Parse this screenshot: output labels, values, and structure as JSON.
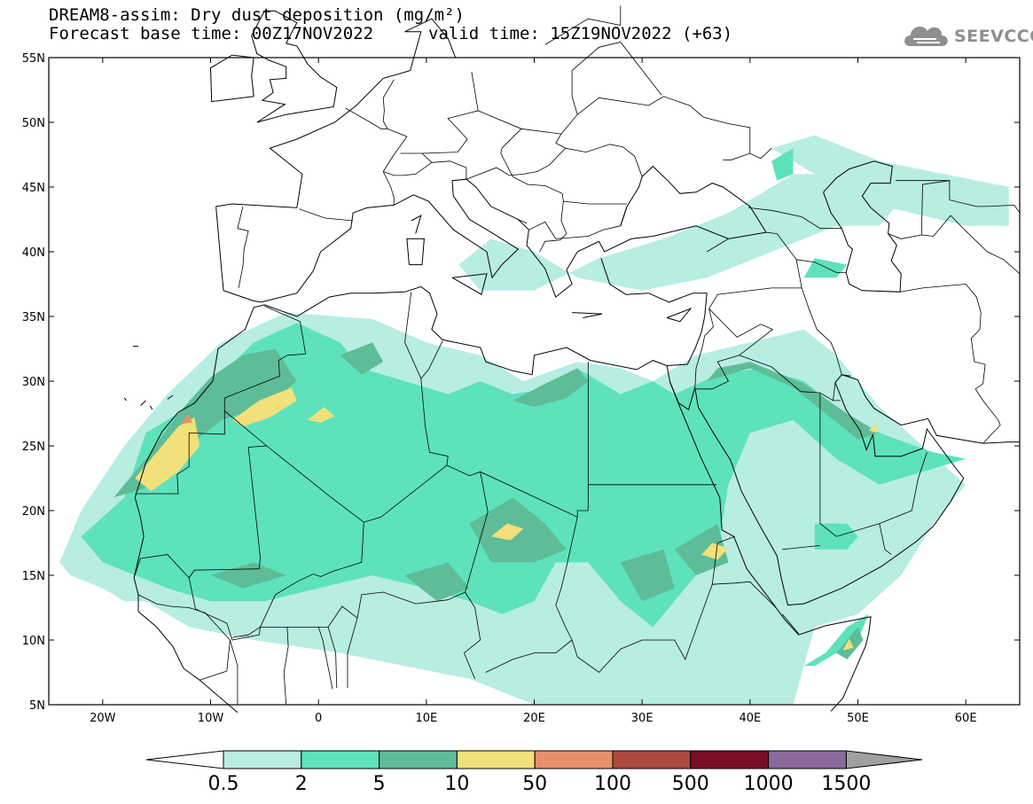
{
  "header": {
    "title_line_1": "DREAM8-assim: Dry dust deposition (mg/m²)",
    "forecast_base": "Forecast base time: 00Z17NOV2022",
    "valid_time": "valid time: 15Z19NOV2022 (+63)"
  },
  "logo": {
    "text": "SEEVCCC",
    "icon": "cloud-icon"
  },
  "map": {
    "lon_range": [
      -25,
      65
    ],
    "lat_range": [
      5,
      55
    ],
    "lat_ticks": [
      {
        "value": 55,
        "label": "55N"
      },
      {
        "value": 50,
        "label": "50N"
      },
      {
        "value": 45,
        "label": "45N"
      },
      {
        "value": 40,
        "label": "40N"
      },
      {
        "value": 35,
        "label": "35N"
      },
      {
        "value": 30,
        "label": "30N"
      },
      {
        "value": 25,
        "label": "25N"
      },
      {
        "value": 20,
        "label": "20N"
      },
      {
        "value": 15,
        "label": "15N"
      },
      {
        "value": 10,
        "label": "10N"
      },
      {
        "value": 5,
        "label": "5N"
      }
    ],
    "lon_ticks": [
      {
        "value": -20,
        "label": "20W"
      },
      {
        "value": -10,
        "label": "10W"
      },
      {
        "value": 0,
        "label": "0"
      },
      {
        "value": 10,
        "label": "10E"
      },
      {
        "value": 20,
        "label": "20E"
      },
      {
        "value": 30,
        "label": "30E"
      },
      {
        "value": 40,
        "label": "40E"
      },
      {
        "value": 50,
        "label": "50E"
      },
      {
        "value": 60,
        "label": "60E"
      }
    ]
  },
  "colorbar": {
    "labels": [
      "0.5",
      "2",
      "5",
      "10",
      "50",
      "100",
      "500",
      "1000",
      "1500"
    ],
    "low_color": "#ffffff",
    "colors": [
      "#b8ede2",
      "#5ee2bc",
      "#5ebc98",
      "#f2e07a",
      "#e8906a",
      "#ab4a3c",
      "#7a0e26",
      "#8a6a9c"
    ],
    "high_color": "#a0a0a0"
  },
  "dust_levels": {
    "level1": "#b8ede2",
    "level2": "#5ee2bc",
    "level3": "#5ebc98",
    "level4": "#f2e07a",
    "level5": "#e8906a"
  }
}
